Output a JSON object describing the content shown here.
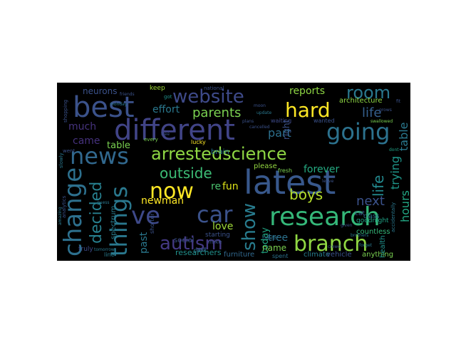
{
  "figure": {
    "background": "#ffffff",
    "canvas_background": "#000000"
  },
  "wordcloud": {
    "colormap": "viridis",
    "words": [
      {
        "text": "best",
        "color": "#3b528b"
      },
      {
        "text": "website",
        "color": "#3e4a89"
      },
      {
        "text": "room",
        "color": "#2a788e"
      },
      {
        "text": "hard",
        "color": "#fde725"
      },
      {
        "text": "different",
        "color": "#414487"
      },
      {
        "text": "going",
        "color": "#2c728e"
      },
      {
        "text": "news",
        "color": "#31688e"
      },
      {
        "text": "arrestedscience",
        "color": "#8fd744"
      },
      {
        "text": "latest",
        "color": "#38588c"
      },
      {
        "text": "change",
        "color": "#2d708e"
      },
      {
        "text": "things",
        "color": "#2a788e"
      },
      {
        "text": "now",
        "color": "#fde725"
      },
      {
        "text": "ve",
        "color": "#3e4989"
      },
      {
        "text": "car",
        "color": "#3b528b"
      },
      {
        "text": "research",
        "color": "#35b779"
      },
      {
        "text": "branch",
        "color": "#90d743"
      },
      {
        "text": "autism",
        "color": "#443983"
      },
      {
        "text": "show",
        "color": "#287c8e"
      },
      {
        "text": "decided",
        "color": "#277f8e"
      },
      {
        "text": "outside",
        "color": "#3cbc75"
      },
      {
        "text": "parents",
        "color": "#7ad151"
      },
      {
        "text": "came",
        "color": "#46327e"
      },
      {
        "text": "much",
        "color": "#46337e"
      },
      {
        "text": "life",
        "color": "#7ad151"
      },
      {
        "text": "table",
        "color": "#355f8d"
      },
      {
        "text": "trying",
        "color": "#23898e"
      },
      {
        "text": "boys",
        "color": "#2a788e"
      },
      {
        "text": "moment",
        "color": "#1f978b"
      },
      {
        "text": "hours",
        "color": "#22a884"
      },
      {
        "text": "next",
        "color": "#3b528b"
      },
      {
        "text": "everyone",
        "color": "#b5de2b"
      },
      {
        "text": "forever",
        "color": "#25ab82"
      },
      {
        "text": "part",
        "color": "#2d708e"
      },
      {
        "text": "reports",
        "color": "#8fd744"
      },
      {
        "text": "effort",
        "color": "#2a788e"
      },
      {
        "text": "neurons",
        "color": "#3b528b"
      },
      {
        "text": "newman",
        "color": "#fde725"
      },
      {
        "text": "fun",
        "color": "#dde318"
      },
      {
        "text": "re",
        "color": "#4ac16d"
      },
      {
        "text": "love",
        "color": "#a0da39"
      },
      {
        "text": "past",
        "color": "#2a788e"
      },
      {
        "text": "tree",
        "color": "#2c728e"
      },
      {
        "text": "name",
        "color": "#7ad151"
      },
      {
        "text": "today",
        "color": "#22a884"
      },
      {
        "text": "researchers",
        "color": "#21918c"
      },
      {
        "text": "furniture",
        "color": "#31688e"
      },
      {
        "text": "climate",
        "color": "#287c8e"
      },
      {
        "text": "vehicle",
        "color": "#3b528b"
      },
      {
        "text": "anything",
        "color": "#7ad151"
      },
      {
        "text": "health",
        "color": "#21918c"
      },
      {
        "text": "countless",
        "color": "#35b779"
      },
      {
        "text": "please",
        "color": "#93d741"
      },
      {
        "text": "brain",
        "color": "#2a788e"
      },
      {
        "text": "social",
        "color": "#3b528b"
      },
      {
        "text": "right",
        "color": "#3b528b"
      },
      {
        "text": "architecture",
        "color": "#8fd744"
      },
      {
        "text": "keep",
        "color": "#a0da39"
      },
      {
        "text": "truly",
        "color": "#3e4a89"
      },
      {
        "text": "spectrum",
        "color": "#287c8e"
      },
      {
        "text": "goodnight",
        "color": "#20a386"
      },
      {
        "text": "class",
        "color": "#2c728e"
      },
      {
        "text": "starting",
        "color": "#3b528b"
      },
      {
        "text": "lucky",
        "color": "#fde725"
      },
      {
        "text": "line",
        "color": "#287c8e"
      },
      {
        "text": "park",
        "color": "#2a788e"
      },
      {
        "text": "spent",
        "color": "#2c728e"
      },
      {
        "text": "mike",
        "color": "#3b528b"
      },
      {
        "text": "waiting",
        "color": "#3e4a89"
      },
      {
        "text": "wanted",
        "color": "#3b528b"
      },
      {
        "text": "fresh",
        "color": "#7ad151"
      },
      {
        "text": "cat",
        "color": "#3b528b"
      },
      {
        "text": "never",
        "color": "#2c728e"
      },
      {
        "text": "shorter",
        "color": "#3b528b"
      },
      {
        "text": "national",
        "color": "#3b528b"
      },
      {
        "text": "got",
        "color": "#21918c"
      },
      {
        "text": "went",
        "color": "#3b528b"
      },
      {
        "text": "plans",
        "color": "#3b528b"
      },
      {
        "text": "given",
        "color": "#3b528b"
      },
      {
        "text": "forget",
        "color": "#2a788e"
      },
      {
        "text": "dont",
        "color": "#20a386"
      },
      {
        "text": "cancelled",
        "color": "#3b528b"
      },
      {
        "text": "update",
        "color": "#2a788e"
      },
      {
        "text": "moon",
        "color": "#3b528b"
      },
      {
        "text": "swallowed",
        "color": "#7ad151"
      },
      {
        "text": "stuff",
        "color": "#3b528b"
      },
      {
        "text": "slowly",
        "color": "#2a788e"
      },
      {
        "text": "amazing",
        "color": "#2a788e"
      },
      {
        "text": "analytics",
        "color": "#3b528b"
      },
      {
        "text": "accidentally",
        "color": "#2a788e"
      },
      {
        "text": "shopping",
        "color": "#3b528b"
      },
      {
        "text": "tomorrow",
        "color": "#2a788e"
      },
      {
        "text": "crowd",
        "color": "#3b528b"
      },
      {
        "text": "monday",
        "color": "#2a788e"
      },
      {
        "text": "every",
        "color": "#7ad151"
      },
      {
        "text": "tree",
        "color": "#3b528b"
      },
      {
        "text": "friends",
        "color": "#3b528b"
      },
      {
        "text": "guess",
        "color": "#2a788e"
      },
      {
        "text": "leave",
        "color": "#3b528b"
      },
      {
        "text": "brothers",
        "color": "#2a788e"
      },
      {
        "text": "grows",
        "color": "#3b528b"
      },
      {
        "text": "fit",
        "color": "#3b528b"
      }
    ]
  }
}
